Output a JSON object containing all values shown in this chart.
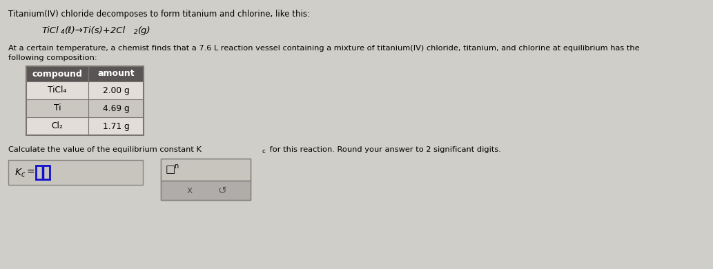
{
  "bg_color": "#d0cec8",
  "title_line": "Titanium(IV) chloride decomposes to form titanium and chlorine, like this:",
  "reaction_parts": [
    "TiCl",
    "4",
    "(ℓ)",
    "→",
    "Ti(s)+2Cl",
    "2",
    "(g)"
  ],
  "para_line1": "At a certain temperature, a chemist finds that a 7.6 L reaction vessel containing a mixture of titanium(IV) chloride, titanium, and chlorine at equilibrium has the",
  "para_line2": "following composition:",
  "table_headers": [
    "compound",
    "amount"
  ],
  "table_rows": [
    [
      "TiCl₄",
      "2.00 g"
    ],
    [
      "Ti",
      "4.69 g"
    ],
    [
      "Cl₂",
      "1.71 g"
    ]
  ],
  "calc_line": "Calculate the value of the equilibrium constant K",
  "calc_subscript": "c",
  "calc_line2": " for this reaction. Round your answer to 2 significant digits.",
  "header_bg": "#5a5555",
  "header_text": "#ffffff",
  "row_bg_odd": "#e2ddd8",
  "row_bg_even": "#cac6c0",
  "table_border": "#7a7570",
  "box1_bg": "#c8c4be",
  "box1_border": "#888480",
  "box2_bg": "#c8c4be",
  "box2_border": "#888480",
  "box2_lower_bg": "#b0acaa",
  "blue_border": "#1010cc",
  "font_size_title": 8.5,
  "font_size_reaction": 9.5,
  "font_size_para": 8.2,
  "font_size_table_hdr": 9,
  "font_size_table_cell": 8.8,
  "font_size_calc": 8.2,
  "font_size_answer": 9
}
